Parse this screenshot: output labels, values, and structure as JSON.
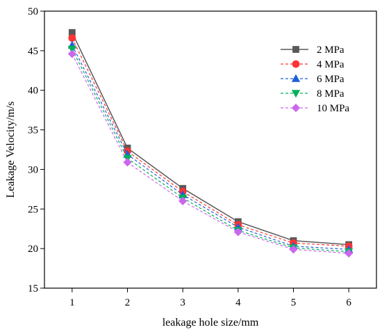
{
  "chart_data": {
    "type": "line",
    "title": "",
    "xlabel": "leakage hole size/mm",
    "ylabel": "Leakage Velocity/m/s",
    "x": [
      1,
      2,
      3,
      4,
      5,
      6
    ],
    "xlim": [
      0.5,
      6.5
    ],
    "ylim": [
      15,
      50
    ],
    "xticks": [
      "1",
      "2",
      "3",
      "4",
      "5",
      "6"
    ],
    "yticks": [
      "15",
      "20",
      "25",
      "30",
      "35",
      "40",
      "45",
      "50"
    ],
    "grid": false,
    "legend_position": "top-right",
    "series": [
      {
        "name": "2 MPa",
        "values": [
          47.3,
          32.7,
          27.6,
          23.4,
          21.0,
          20.5
        ],
        "color": "#595959",
        "marker": "square",
        "dash": "solid"
      },
      {
        "name": "4 MPa",
        "values": [
          46.6,
          32.3,
          27.2,
          23.0,
          20.7,
          20.3
        ],
        "color": "#ff3333",
        "marker": "circle",
        "dash": "dashed"
      },
      {
        "name": "6 MPa",
        "values": [
          45.7,
          31.9,
          26.8,
          22.7,
          20.3,
          19.9
        ],
        "color": "#1f5fd6",
        "marker": "triangle-up",
        "dash": "dashed"
      },
      {
        "name": "8 MPa",
        "values": [
          45.2,
          31.4,
          26.4,
          22.3,
          20.1,
          19.6
        ],
        "color": "#00b05a",
        "marker": "triangle-down",
        "dash": "dashed"
      },
      {
        "name": "10 MPa",
        "values": [
          44.6,
          30.9,
          26.0,
          22.1,
          19.9,
          19.4
        ],
        "color": "#cc66ee",
        "marker": "diamond",
        "dash": "dashed"
      }
    ]
  }
}
